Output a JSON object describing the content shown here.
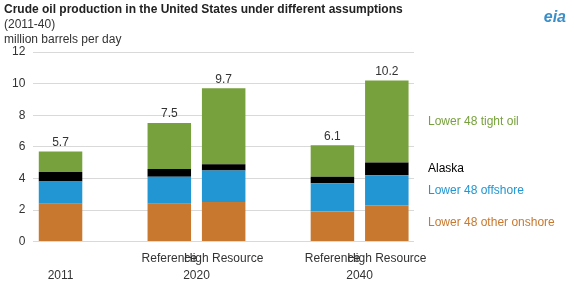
{
  "chart_data": {
    "type": "bar",
    "title": "Crude oil production in the United States under different assumptions",
    "subtitle": "(2011-40)",
    "y_label": "million barrels per day",
    "logo": "eia",
    "categories": [
      null,
      null,
      "Reference",
      "High Resource",
      null,
      "Reference",
      "High Resource"
    ],
    "group_labels": [
      "2011",
      null,
      "2020",
      "2020",
      null,
      "2040",
      "2040"
    ],
    "series": [
      {
        "name": "Lower 48 other onshore",
        "color": "#c8782f",
        "values": [
          2.4,
          null,
          2.4,
          2.5,
          null,
          1.9,
          2.3
        ]
      },
      {
        "name": "Lower 48 offshore",
        "color": "#2196d3",
        "values": [
          1.4,
          null,
          1.7,
          2.0,
          null,
          1.8,
          1.9
        ]
      },
      {
        "name": "Alaska",
        "color": "#000000",
        "values": [
          0.6,
          null,
          0.5,
          0.4,
          null,
          0.4,
          0.8
        ]
      },
      {
        "name": "Lower 48 tight oil",
        "color": "#77a13c",
        "values": [
          1.3,
          null,
          2.9,
          4.8,
          null,
          2.0,
          5.2
        ]
      }
    ],
    "totals": [
      5.7,
      null,
      7.5,
      9.7,
      null,
      6.1,
      10.2
    ],
    "ylim": [
      0,
      12
    ],
    "yticks": [
      0,
      2,
      4,
      6,
      8,
      10,
      12
    ],
    "stacked": true,
    "grid": true,
    "legend": "right"
  }
}
